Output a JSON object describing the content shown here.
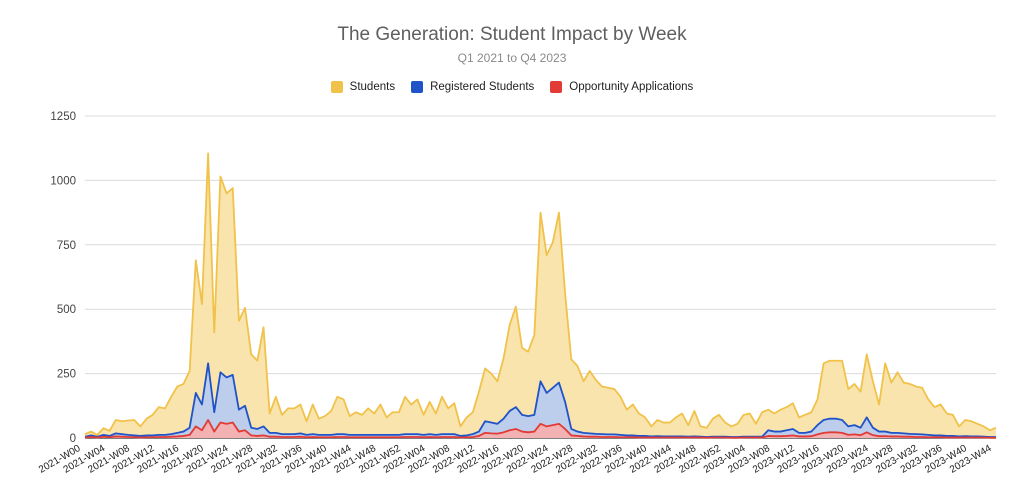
{
  "chart_data": {
    "type": "area",
    "title": "The Generation: Student Impact by Week",
    "subtitle": "Q1 2021 to Q4 2023",
    "ylim": [
      0,
      1250
    ],
    "yticks": [
      0,
      250,
      500,
      750,
      1000,
      1250
    ],
    "grid": true,
    "legend_position": "top-center",
    "xlabel": "",
    "ylabel": "",
    "x_tick_labels": [
      "2021-W00",
      "2021-W04",
      "2021-W08",
      "2021-W12",
      "2021-W16",
      "2021-W20",
      "2021-W24",
      "2021-W28",
      "2021-W32",
      "2021-W36",
      "2021-W40",
      "2021-W44",
      "2021-W48",
      "2021-W52",
      "2022-W04",
      "2022-W08",
      "2022-W12",
      "2022-W16",
      "2022-W20",
      "2022-W24",
      "2022-W28",
      "2022-W32",
      "2022-W36",
      "2022-W40",
      "2022-W44",
      "2022-W48",
      "2022-W52",
      "2023-W04",
      "2023-W08",
      "2023-W12",
      "2023-W16",
      "2023-W20",
      "2023-W24",
      "2023-W28",
      "2023-W32",
      "2023-W36",
      "2023-W40",
      "2023-W44"
    ],
    "series": [
      {
        "name": "Students",
        "color": "#f1c24a",
        "fill": "#f8e3a8",
        "values": [
          15,
          25,
          12,
          38,
          28,
          70,
          65,
          68,
          70,
          45,
          75,
          90,
          120,
          115,
          160,
          200,
          210,
          260,
          690,
          520,
          1105,
          410,
          1015,
          950,
          970,
          455,
          505,
          325,
          300,
          430,
          95,
          160,
          90,
          115,
          115,
          130,
          65,
          130,
          75,
          85,
          105,
          160,
          150,
          85,
          100,
          90,
          115,
          95,
          130,
          80,
          100,
          100,
          160,
          130,
          150,
          90,
          140,
          95,
          160,
          115,
          135,
          45,
          80,
          100,
          180,
          270,
          250,
          220,
          310,
          440,
          510,
          350,
          335,
          400,
          875,
          710,
          760,
          875,
          560,
          305,
          280,
          220,
          260,
          225,
          200,
          195,
          190,
          160,
          110,
          130,
          95,
          80,
          45,
          70,
          60,
          60,
          80,
          95,
          50,
          105,
          45,
          40,
          75,
          90,
          60,
          45,
          55,
          90,
          95,
          55,
          100,
          110,
          95,
          110,
          120,
          135,
          80,
          90,
          100,
          150,
          290,
          300,
          300,
          300,
          190,
          210,
          180,
          325,
          220,
          130,
          290,
          215,
          255,
          215,
          210,
          200,
          195,
          150,
          120,
          130,
          95,
          90,
          45,
          70,
          65,
          55,
          45,
          30,
          40
        ]
      },
      {
        "name": "Registered Students",
        "color": "#2052c8",
        "fill": "#b8ccef",
        "values": [
          5,
          10,
          5,
          12,
          8,
          18,
          15,
          12,
          10,
          8,
          10,
          10,
          12,
          12,
          15,
          20,
          25,
          40,
          175,
          130,
          290,
          100,
          255,
          235,
          245,
          110,
          125,
          40,
          35,
          45,
          20,
          20,
          15,
          15,
          15,
          18,
          12,
          15,
          12,
          12,
          12,
          15,
          15,
          12,
          12,
          12,
          12,
          12,
          12,
          12,
          12,
          12,
          15,
          15,
          15,
          12,
          15,
          12,
          15,
          15,
          15,
          8,
          10,
          15,
          25,
          65,
          60,
          55,
          75,
          105,
          120,
          90,
          85,
          90,
          220,
          175,
          195,
          215,
          140,
          35,
          25,
          20,
          18,
          16,
          15,
          14,
          14,
          12,
          10,
          10,
          8,
          8,
          6,
          7,
          6,
          6,
          6,
          6,
          5,
          6,
          5,
          4,
          5,
          5,
          5,
          4,
          4,
          5,
          5,
          5,
          5,
          30,
          25,
          25,
          30,
          35,
          20,
          20,
          25,
          50,
          70,
          75,
          75,
          70,
          45,
          50,
          40,
          80,
          40,
          25,
          25,
          20,
          20,
          18,
          16,
          15,
          14,
          12,
          10,
          10,
          8,
          8,
          6,
          7,
          6,
          6,
          5,
          4,
          4
        ]
      },
      {
        "name": "Opportunity Applications",
        "color": "#e23b36",
        "fill": "#f4b0b0",
        "values": [
          2,
          4,
          2,
          5,
          3,
          6,
          5,
          4,
          3,
          2,
          3,
          3,
          4,
          4,
          5,
          6,
          8,
          12,
          45,
          30,
          70,
          25,
          60,
          55,
          60,
          25,
          30,
          10,
          8,
          10,
          5,
          5,
          4,
          4,
          4,
          5,
          3,
          4,
          3,
          3,
          3,
          4,
          4,
          3,
          3,
          3,
          3,
          3,
          3,
          3,
          3,
          3,
          4,
          4,
          4,
          3,
          4,
          3,
          4,
          4,
          4,
          2,
          3,
          4,
          8,
          20,
          18,
          17,
          22,
          30,
          35,
          25,
          22,
          25,
          55,
          45,
          50,
          55,
          35,
          10,
          8,
          6,
          5,
          5,
          4,
          4,
          4,
          3,
          3,
          3,
          2,
          2,
          2,
          2,
          2,
          2,
          2,
          2,
          2,
          2,
          2,
          1,
          2,
          2,
          2,
          1,
          1,
          2,
          2,
          2,
          2,
          8,
          7,
          7,
          8,
          10,
          6,
          6,
          7,
          14,
          20,
          22,
          22,
          20,
          12,
          14,
          11,
          22,
          11,
          7,
          7,
          6,
          6,
          5,
          5,
          4,
          4,
          3,
          3,
          3,
          2,
          2,
          2,
          2,
          2,
          2,
          2,
          1,
          1
        ]
      }
    ]
  }
}
